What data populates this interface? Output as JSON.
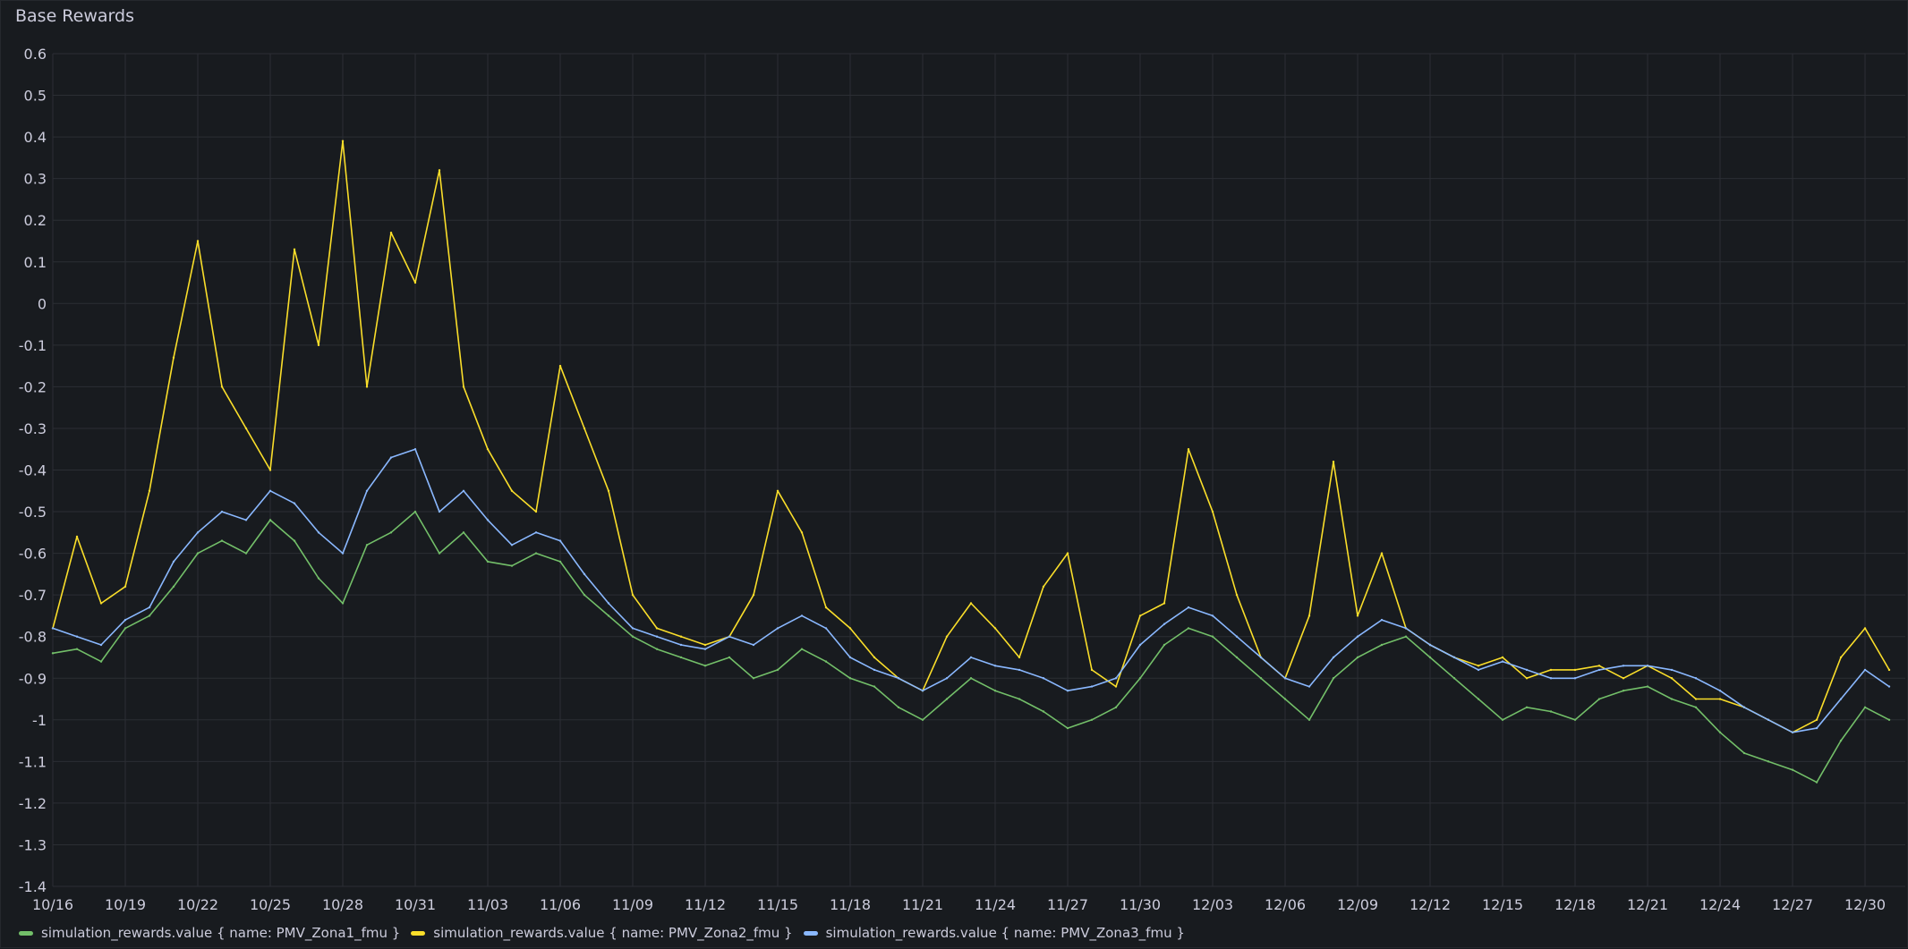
{
  "panel": {
    "title": "Base Rewards"
  },
  "legend": {
    "items": [
      {
        "label": "simulation_rewards.value { name: PMV_Zona1_fmu }",
        "color": "#73bf69"
      },
      {
        "label": "simulation_rewards.value { name: PMV_Zona2_fmu }",
        "color": "#fade2a"
      },
      {
        "label": "simulation_rewards.value { name: PMV_Zona3_fmu }",
        "color": "#8ab8ff"
      }
    ]
  },
  "chart_data": {
    "type": "line",
    "title": "Base Rewards",
    "xlabel": "",
    "ylabel": "",
    "grid": true,
    "legend_position": "bottom-left",
    "xlim": [
      "10/16",
      "12/31"
    ],
    "ylim": [
      -1.4,
      0.6
    ],
    "x_ticks": [
      "10/16",
      "10/19",
      "10/22",
      "10/25",
      "10/28",
      "10/31",
      "11/03",
      "11/06",
      "11/09",
      "11/12",
      "11/15",
      "11/18",
      "11/21",
      "11/24",
      "11/27",
      "11/30",
      "12/03",
      "12/06",
      "12/09",
      "12/12",
      "12/15",
      "12/18",
      "12/21",
      "12/24",
      "12/27",
      "12/30"
    ],
    "y_ticks": [
      "0.6",
      "0.5",
      "0.4",
      "0.3",
      "0.2",
      "0.1",
      "0",
      "-0.1",
      "-0.2",
      "-0.3",
      "-0.4",
      "-0.5",
      "-0.6",
      "-0.7",
      "-0.8",
      "-0.9",
      "-1",
      "-1.1",
      "-1.2",
      "-1.3",
      "-1.4"
    ],
    "x_start": "10/16",
    "series": [
      {
        "name": "simulation_rewards.value { name: PMV_Zona1_fmu }",
        "color": "#73bf69",
        "x": [
          "10/16",
          "10/17",
          "10/18",
          "10/19",
          "10/20",
          "10/21",
          "10/22",
          "10/23",
          "10/24",
          "10/25",
          "10/26",
          "10/27",
          "10/28",
          "10/29",
          "10/30",
          "10/31",
          "11/01",
          "11/02",
          "11/03",
          "11/04",
          "11/05",
          "11/06",
          "11/07",
          "11/08",
          "11/09",
          "11/10",
          "11/11",
          "11/12",
          "11/13",
          "11/14",
          "11/15",
          "11/16",
          "11/17",
          "11/18",
          "11/19",
          "11/20",
          "11/21",
          "11/22",
          "11/23",
          "11/24",
          "11/25",
          "11/26",
          "11/27",
          "11/28",
          "11/29",
          "11/30",
          "12/01",
          "12/02",
          "12/03",
          "12/04",
          "12/05",
          "12/06",
          "12/07",
          "12/08",
          "12/09",
          "12/10",
          "12/11",
          "12/12",
          "12/13",
          "12/14",
          "12/15",
          "12/16",
          "12/17",
          "12/18",
          "12/19",
          "12/20",
          "12/21",
          "12/22",
          "12/23",
          "12/24",
          "12/25",
          "12/26",
          "12/27",
          "12/28",
          "12/29",
          "12/30",
          "12/31"
        ],
        "values": [
          -0.84,
          -0.83,
          -0.86,
          -0.78,
          -0.75,
          -0.68,
          -0.6,
          -0.57,
          -0.6,
          -0.52,
          -0.57,
          -0.66,
          -0.72,
          -0.58,
          -0.55,
          -0.5,
          -0.6,
          -0.55,
          -0.62,
          -0.63,
          -0.6,
          -0.62,
          -0.7,
          -0.75,
          -0.8,
          -0.83,
          -0.85,
          -0.87,
          -0.85,
          -0.9,
          -0.88,
          -0.83,
          -0.86,
          -0.9,
          -0.92,
          -0.97,
          -1.0,
          -0.95,
          -0.9,
          -0.93,
          -0.95,
          -0.98,
          -1.02,
          -1.0,
          -0.97,
          -0.9,
          -0.82,
          -0.78,
          -0.8,
          -0.85,
          -0.9,
          -0.95,
          -1.0,
          -0.9,
          -0.85,
          -0.82,
          -0.8,
          -0.85,
          -0.9,
          -0.95,
          -1.0,
          -0.97,
          -0.98,
          -1.0,
          -0.95,
          -0.93,
          -0.92,
          -0.95,
          -0.97,
          -1.03,
          -1.08,
          -1.1,
          -1.12,
          -1.15,
          -1.05,
          -0.97,
          -1.0
        ]
      },
      {
        "name": "simulation_rewards.value { name: PMV_Zona2_fmu }",
        "color": "#fade2a",
        "x": [
          "10/16",
          "10/17",
          "10/18",
          "10/19",
          "10/20",
          "10/21",
          "10/22",
          "10/23",
          "10/24",
          "10/25",
          "10/26",
          "10/27",
          "10/28",
          "10/29",
          "10/30",
          "10/31",
          "11/01",
          "11/02",
          "11/03",
          "11/04",
          "11/05",
          "11/06",
          "11/07",
          "11/08",
          "11/09",
          "11/10",
          "11/11",
          "11/12",
          "11/13",
          "11/14",
          "11/15",
          "11/16",
          "11/17",
          "11/18",
          "11/19",
          "11/20",
          "11/21",
          "11/22",
          "11/23",
          "11/24",
          "11/25",
          "11/26",
          "11/27",
          "11/28",
          "11/29",
          "11/30",
          "12/01",
          "12/02",
          "12/03",
          "12/04",
          "12/05",
          "12/06",
          "12/07",
          "12/08",
          "12/09",
          "12/10",
          "12/11",
          "12/12",
          "12/13",
          "12/14",
          "12/15",
          "12/16",
          "12/17",
          "12/18",
          "12/19",
          "12/20",
          "12/21",
          "12/22",
          "12/23",
          "12/24",
          "12/25",
          "12/26",
          "12/27",
          "12/28",
          "12/29",
          "12/30",
          "12/31"
        ],
        "values": [
          -0.78,
          -0.56,
          -0.72,
          -0.68,
          -0.45,
          -0.13,
          0.15,
          -0.2,
          -0.3,
          -0.4,
          0.13,
          -0.1,
          0.39,
          -0.2,
          0.17,
          0.05,
          0.32,
          -0.2,
          -0.35,
          -0.45,
          -0.5,
          -0.15,
          -0.3,
          -0.45,
          -0.7,
          -0.78,
          -0.8,
          -0.82,
          -0.8,
          -0.7,
          -0.45,
          -0.55,
          -0.73,
          -0.78,
          -0.85,
          -0.9,
          -0.93,
          -0.8,
          -0.72,
          -0.78,
          -0.85,
          -0.68,
          -0.6,
          -0.88,
          -0.92,
          -0.75,
          -0.72,
          -0.35,
          -0.5,
          -0.7,
          -0.85,
          -0.9,
          -0.75,
          -0.38,
          -0.75,
          -0.6,
          -0.78,
          -0.82,
          -0.85,
          -0.87,
          -0.85,
          -0.9,
          -0.88,
          -0.88,
          -0.87,
          -0.9,
          -0.87,
          -0.9,
          -0.95,
          -0.95,
          -0.97,
          -1.0,
          -1.03,
          -1.0,
          -0.85,
          -0.78,
          -0.88
        ]
      },
      {
        "name": "simulation_rewards.value { name: PMV_Zona3_fmu }",
        "color": "#8ab8ff",
        "x": [
          "10/16",
          "10/17",
          "10/18",
          "10/19",
          "10/20",
          "10/21",
          "10/22",
          "10/23",
          "10/24",
          "10/25",
          "10/26",
          "10/27",
          "10/28",
          "10/29",
          "10/30",
          "10/31",
          "11/01",
          "11/02",
          "11/03",
          "11/04",
          "11/05",
          "11/06",
          "11/07",
          "11/08",
          "11/09",
          "11/10",
          "11/11",
          "11/12",
          "11/13",
          "11/14",
          "11/15",
          "11/16",
          "11/17",
          "11/18",
          "11/19",
          "11/20",
          "11/21",
          "11/22",
          "11/23",
          "11/24",
          "11/25",
          "11/26",
          "11/27",
          "11/28",
          "11/29",
          "11/30",
          "12/01",
          "12/02",
          "12/03",
          "12/04",
          "12/05",
          "12/06",
          "12/07",
          "12/08",
          "12/09",
          "12/10",
          "12/11",
          "12/12",
          "12/13",
          "12/14",
          "12/15",
          "12/16",
          "12/17",
          "12/18",
          "12/19",
          "12/20",
          "12/21",
          "12/22",
          "12/23",
          "12/24",
          "12/25",
          "12/26",
          "12/27",
          "12/28",
          "12/29",
          "12/30",
          "12/31"
        ],
        "values": [
          -0.78,
          -0.8,
          -0.82,
          -0.76,
          -0.73,
          -0.62,
          -0.55,
          -0.5,
          -0.52,
          -0.45,
          -0.48,
          -0.55,
          -0.6,
          -0.45,
          -0.37,
          -0.35,
          -0.5,
          -0.45,
          -0.52,
          -0.58,
          -0.55,
          -0.57,
          -0.65,
          -0.72,
          -0.78,
          -0.8,
          -0.82,
          -0.83,
          -0.8,
          -0.82,
          -0.78,
          -0.75,
          -0.78,
          -0.85,
          -0.88,
          -0.9,
          -0.93,
          -0.9,
          -0.85,
          -0.87,
          -0.88,
          -0.9,
          -0.93,
          -0.92,
          -0.9,
          -0.82,
          -0.77,
          -0.73,
          -0.75,
          -0.8,
          -0.85,
          -0.9,
          -0.92,
          -0.85,
          -0.8,
          -0.76,
          -0.78,
          -0.82,
          -0.85,
          -0.88,
          -0.86,
          -0.88,
          -0.9,
          -0.9,
          -0.88,
          -0.87,
          -0.87,
          -0.88,
          -0.9,
          -0.93,
          -0.97,
          -1.0,
          -1.03,
          -1.02,
          -0.95,
          -0.88,
          -0.92
        ]
      }
    ]
  }
}
